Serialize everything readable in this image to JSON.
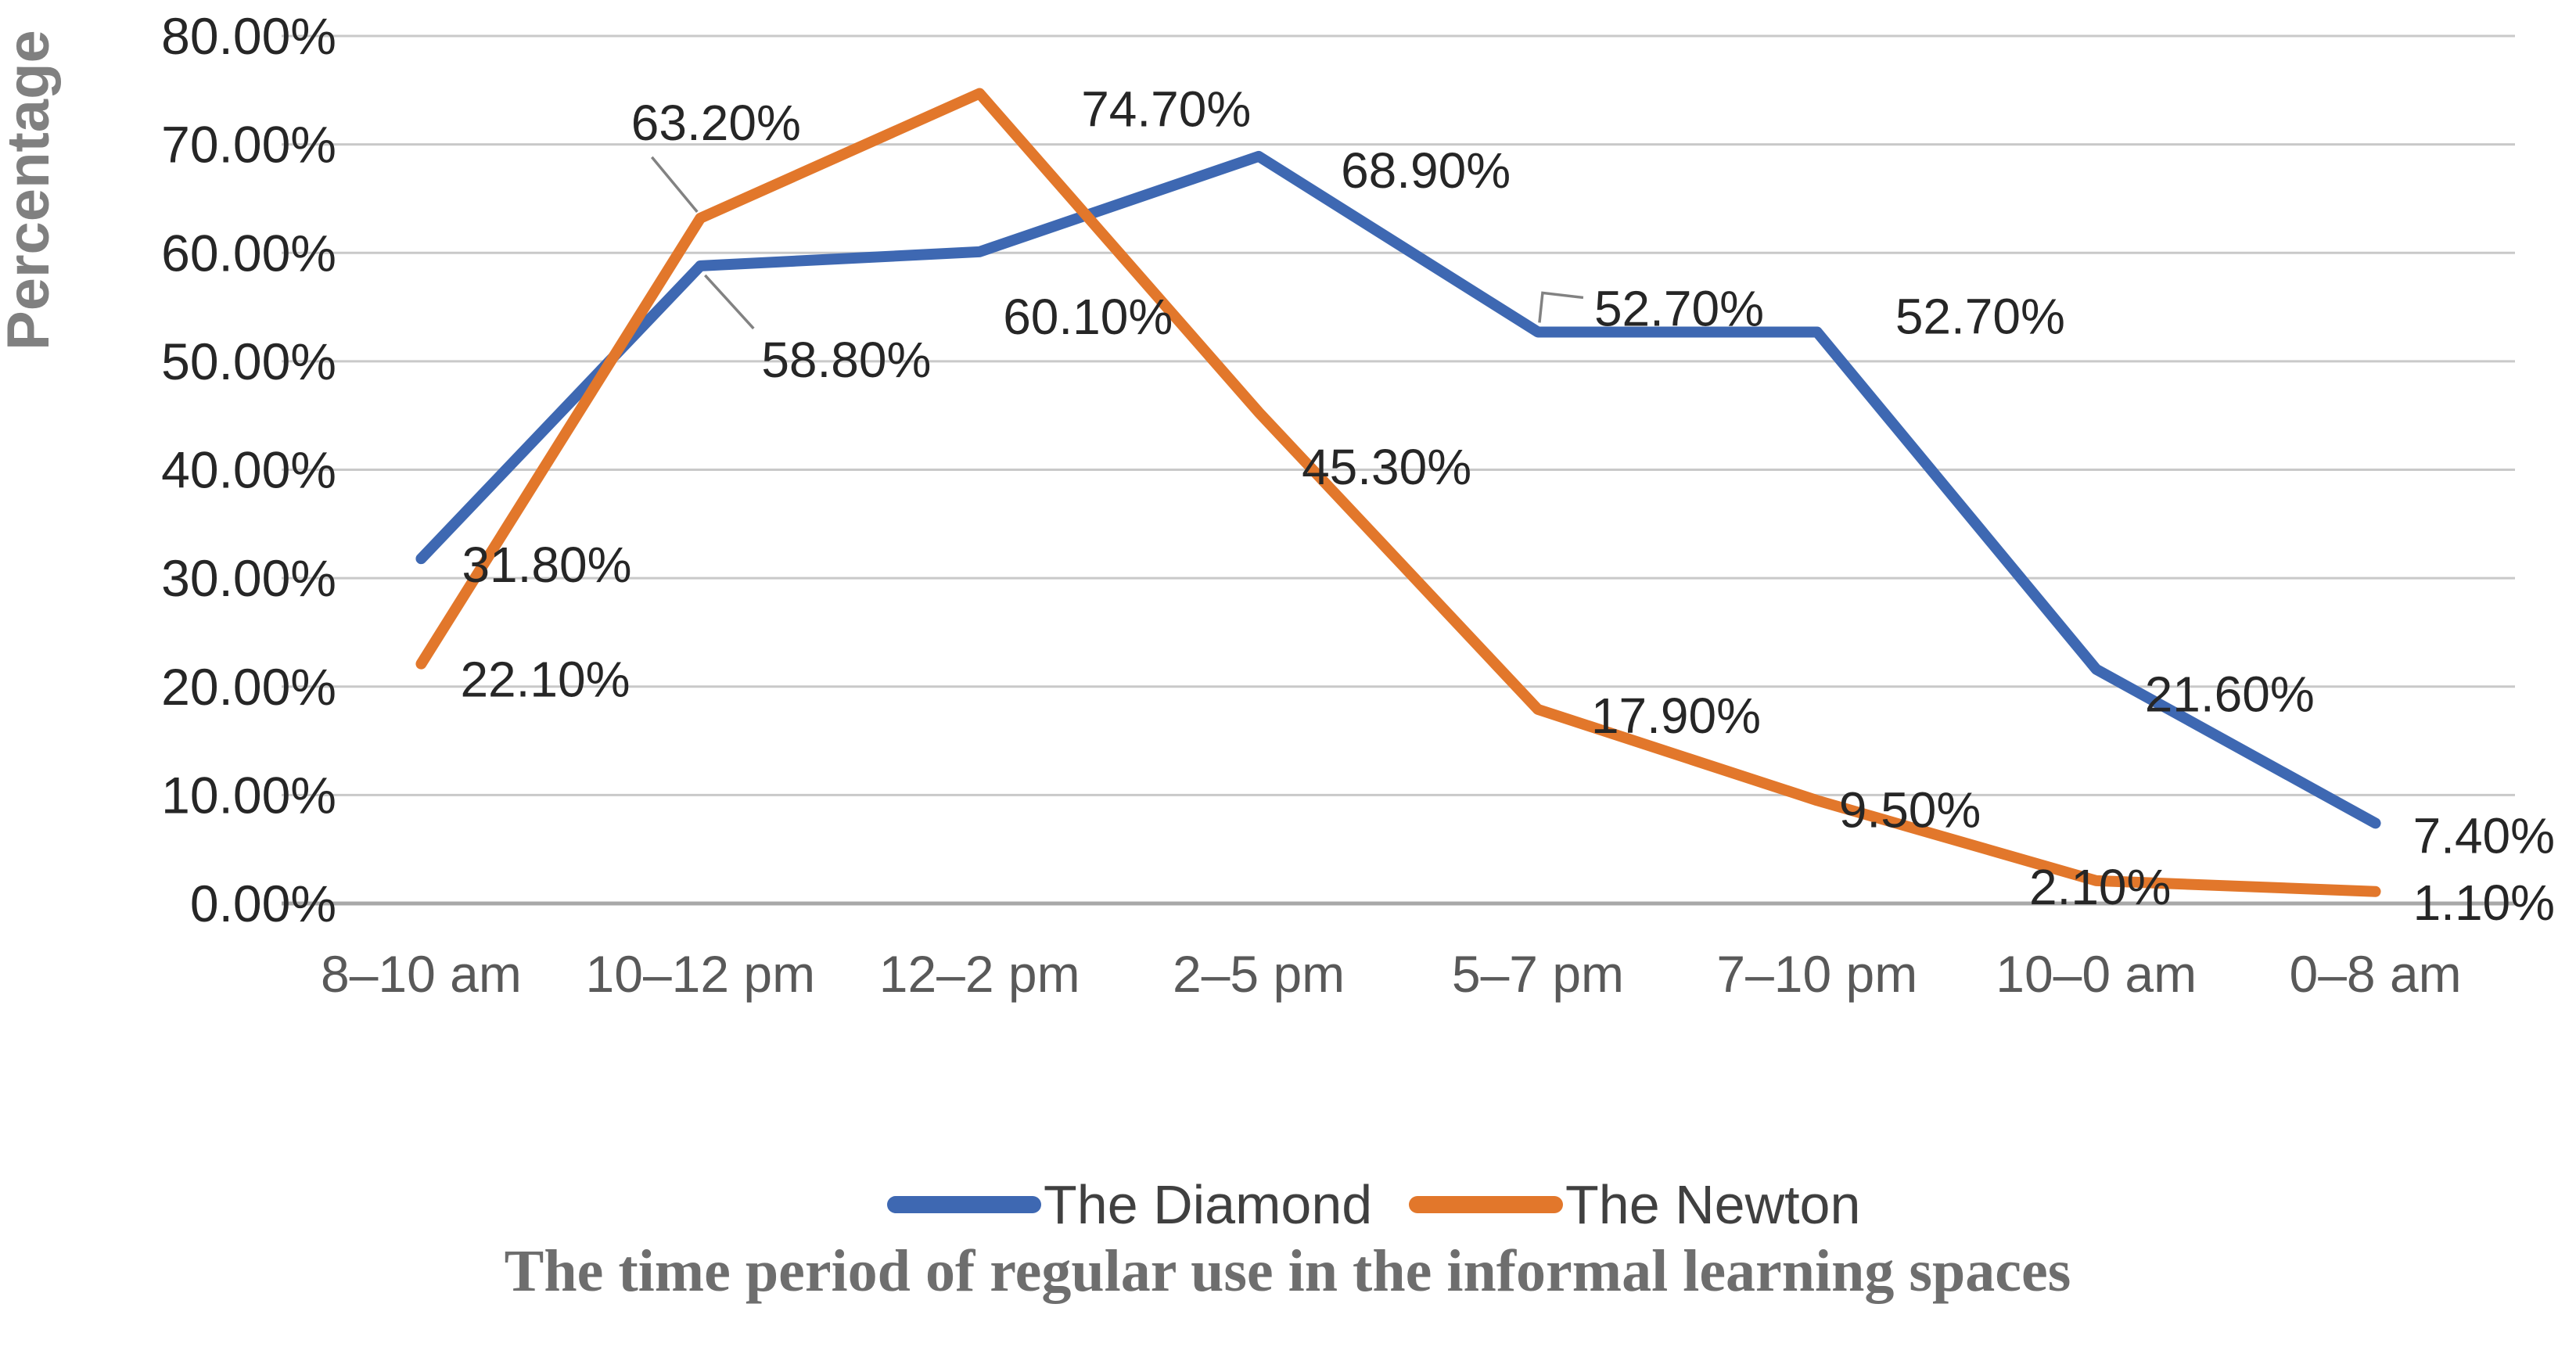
{
  "chart_data": {
    "type": "line",
    "title": "The time period of regular use in the informal learning spaces",
    "ylabel": "Percentage",
    "xlabel": "",
    "grid": true,
    "legend_position": "bottom",
    "categories": [
      "8–10 am",
      "10–12 pm",
      "12–2 pm",
      "2–5 pm",
      "5–7 pm",
      "7–10 pm",
      "10–0 am",
      "0–8 am"
    ],
    "y_axis": {
      "min": 0,
      "max": 80,
      "step": 10,
      "tick_labels": [
        "0.00%",
        "10.00%",
        "20.00%",
        "30.00%",
        "40.00%",
        "50.00%",
        "60.00%",
        "70.00%",
        "80.00%"
      ]
    },
    "series": [
      {
        "name": "The Diamond",
        "color": "#3E68B2",
        "values": [
          31.8,
          58.8,
          60.1,
          68.9,
          52.7,
          52.7,
          21.6,
          7.4
        ],
        "data_labels": [
          "31.80%",
          "58.80%",
          "60.10%",
          "68.90%",
          "52.70%",
          "52.70%",
          "21.60%",
          "7.40%"
        ],
        "label_offsets": [
          [
            52,
            8,
            "start"
          ],
          [
            78,
            120,
            "start"
          ],
          [
            30,
            83,
            "start"
          ],
          [
            105,
            18,
            "start"
          ],
          [
            72,
            -30,
            "start"
          ],
          [
            100,
            -20,
            "start"
          ],
          [
            62,
            32,
            "start"
          ],
          [
            48,
            16,
            "start"
          ]
        ]
      },
      {
        "name": "The Newton",
        "color": "#E2772B",
        "values": [
          22.1,
          63.2,
          74.7,
          45.3,
          17.9,
          9.5,
          2.1,
          1.1
        ],
        "data_labels": [
          "22.10%",
          "63.20%",
          "74.70%",
          "45.30%",
          "17.90%",
          "9.50%",
          "2.10%",
          "1.10%"
        ],
        "label_offsets": [
          [
            50,
            20,
            "start"
          ],
          [
            20,
            -122,
            "middle"
          ],
          [
            130,
            20,
            "start"
          ],
          [
            55,
            70,
            "start"
          ],
          [
            68,
            8,
            "start"
          ],
          [
            28,
            12,
            "start"
          ],
          [
            5,
            8,
            "middle"
          ],
          [
            48,
            14,
            "start"
          ]
        ]
      }
    ],
    "leader_lines": [
      {
        "series": 1,
        "point": 1,
        "path": [
          [
            -62,
            -78
          ],
          [
            -4,
            -8
          ]
        ]
      },
      {
        "series": 0,
        "point": 1,
        "path": [
          [
            6,
            12
          ],
          [
            68,
            80
          ]
        ]
      },
      {
        "series": 0,
        "point": 4,
        "path": [
          [
            2,
            -12
          ],
          [
            6,
            -50
          ],
          [
            58,
            -44
          ]
        ]
      }
    ],
    "colors": {
      "gridline": "#c9c9c9",
      "axis_line": "#a8a8a8",
      "leader_line": "#828282",
      "tick_text": "#262626",
      "category_text": "#595959",
      "title_text": "#6e6e6e",
      "y_title_text": "#808080"
    }
  }
}
